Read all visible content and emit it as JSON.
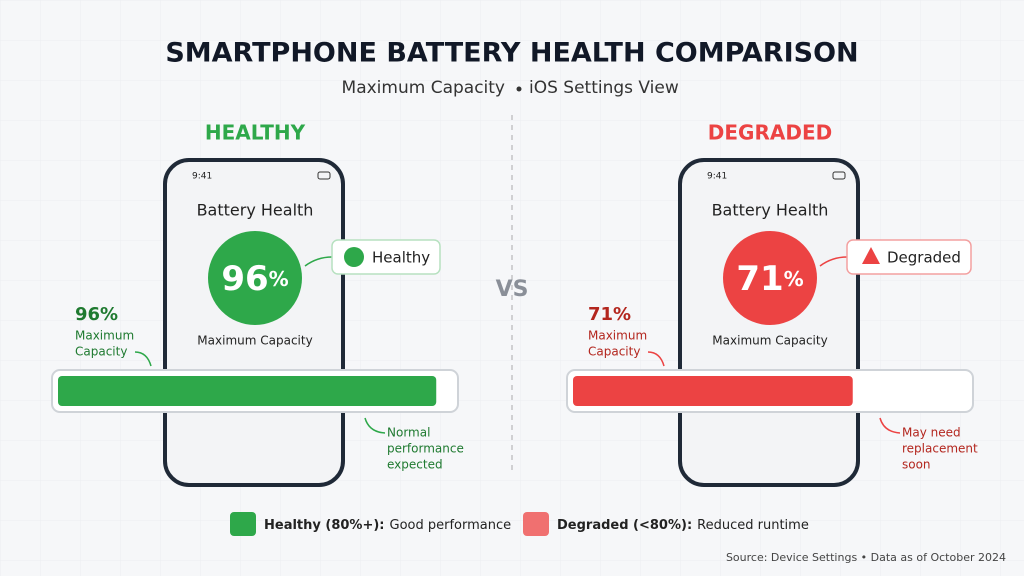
{
  "header": {
    "title": "SMARTPHONE BATTERY HEALTH COMPARISON",
    "subtitle_left": "Maximum Capacity",
    "subtitle_right": "iOS Settings View"
  },
  "vs": "VS",
  "panels": [
    {
      "label": "HEALTHY",
      "time": "9:41",
      "screen_title": "Battery Health",
      "value": 96,
      "unit": "%",
      "badge": "Healthy",
      "screen_caption": "Maximum Capacity",
      "side_value": "96%",
      "side_caption": [
        "Maximum",
        "Capacity"
      ],
      "note": [
        "Normal",
        "performance",
        "expected"
      ],
      "xlim": [
        0,
        100
      ],
      "color": "#2ea84a",
      "dark": "#1f7a30"
    },
    {
      "label": "DEGRADED",
      "time": "9:41",
      "screen_title": "Battery Health",
      "value": 71,
      "unit": "%",
      "badge": "Degraded",
      "screen_caption": "Maximum Capacity",
      "side_value": "71%",
      "side_caption": [
        "Maximum",
        "Capacity"
      ],
      "note": [
        "May need",
        "replacement",
        "soon"
      ],
      "xlim": [
        0,
        100
      ],
      "color": "#ec4343",
      "dark": "#b3261e"
    }
  ],
  "legend": [
    {
      "bold": "Healthy (80%+):",
      "text": "Good performance",
      "color": "#2ea84a"
    },
    {
      "bold": "Degraded (<80%):",
      "text": "Reduced runtime",
      "color": "#f07070"
    }
  ],
  "source": "Source: Device Settings • Data as of October 2024"
}
